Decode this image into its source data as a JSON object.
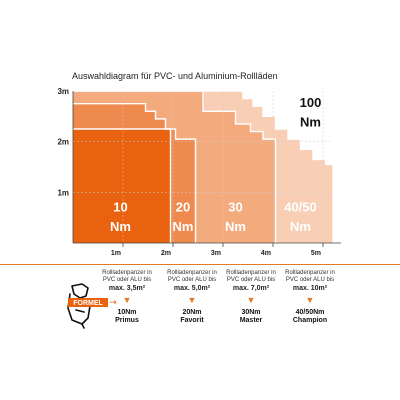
{
  "chart_data": {
    "type": "area",
    "title": "Auswahldiagram für PVC- und Aluminium-Rollläden",
    "y_ticks": [
      "3m",
      "2m",
      "1m"
    ],
    "x_ticks": [
      "1m",
      "2m",
      "3m",
      "4m",
      "5m"
    ],
    "xlim": [
      0,
      5.2
    ],
    "ylim": [
      0,
      3
    ],
    "zones": [
      {
        "label_line1": "10",
        "label_line2": "Nm",
        "color": "#e8620f",
        "boundary": [
          [
            0,
            2.25
          ],
          [
            1.95,
            2.25
          ],
          [
            1.95,
            0
          ]
        ]
      },
      {
        "label_line1": "20",
        "label_line2": "Nm",
        "color": "#ef8a4e",
        "boundary": [
          [
            0,
            2.75
          ],
          [
            1.45,
            2.75
          ],
          [
            1.45,
            2.6
          ],
          [
            1.65,
            2.6
          ],
          [
            1.65,
            2.45
          ],
          [
            1.85,
            2.45
          ],
          [
            1.85,
            2.25
          ],
          [
            2.05,
            2.25
          ],
          [
            2.05,
            2.05
          ],
          [
            2.45,
            2.05
          ],
          [
            2.45,
            0
          ]
        ]
      },
      {
        "label_line1": "30",
        "label_line2": "Nm",
        "color": "#f3ab7e",
        "boundary": [
          [
            0,
            3
          ],
          [
            2.6,
            3
          ],
          [
            2.6,
            2.6
          ],
          [
            3.25,
            2.6
          ],
          [
            3.25,
            2.35
          ],
          [
            3.55,
            2.35
          ],
          [
            3.55,
            2.2
          ],
          [
            3.8,
            2.2
          ],
          [
            3.8,
            2.05
          ],
          [
            4.05,
            2.05
          ],
          [
            4.05,
            0
          ]
        ]
      },
      {
        "label_line1": "40/50",
        "label_line2": "Nm",
        "color": "#f8cfb4",
        "boundary": [
          [
            0,
            3
          ],
          [
            3.4,
            3
          ],
          [
            3.4,
            2.85
          ],
          [
            3.6,
            2.85
          ],
          [
            3.6,
            2.7
          ],
          [
            3.8,
            2.7
          ],
          [
            3.8,
            2.5
          ],
          [
            4.05,
            2.5
          ],
          [
            4.05,
            2.25
          ],
          [
            4.3,
            2.25
          ],
          [
            4.3,
            2.05
          ],
          [
            4.55,
            2.05
          ],
          [
            4.55,
            1.85
          ],
          [
            4.8,
            1.85
          ],
          [
            4.8,
            1.65
          ],
          [
            5.05,
            1.65
          ],
          [
            5.05,
            1.55
          ],
          [
            5.2,
            1.55
          ],
          [
            5.2,
            0
          ]
        ]
      },
      {
        "label_line1": "100",
        "label_line2": "Nm",
        "color": "#ffffff"
      }
    ]
  },
  "legend": {
    "formel_label": "FORMEL",
    "arrow": "→",
    "columns": [
      {
        "line1": "Rollladenpanzer in",
        "line2": "PVC oder ALU bis",
        "max": "max. 3,5m²",
        "arrow": "▼",
        "nm": "10Nm",
        "model": "Primus"
      },
      {
        "line1": "Rollladenpanzer in",
        "line2": "PVC oder ALU bis",
        "max": "max. 5,0m²",
        "arrow": "▼",
        "nm": "20Nm",
        "model": "Favorit"
      },
      {
        "line1": "Rollladenpanzer in",
        "line2": "PVC oder ALU bis",
        "max": "max. 7,0m²",
        "arrow": "▼",
        "nm": "30Nm",
        "model": "Master"
      },
      {
        "line1": "Rollladenpanzer in",
        "line2": "PVC oder ALU bis",
        "max": "max. 10m²",
        "arrow": "▼",
        "nm": "40/50Nm",
        "model": "Champion"
      }
    ]
  }
}
